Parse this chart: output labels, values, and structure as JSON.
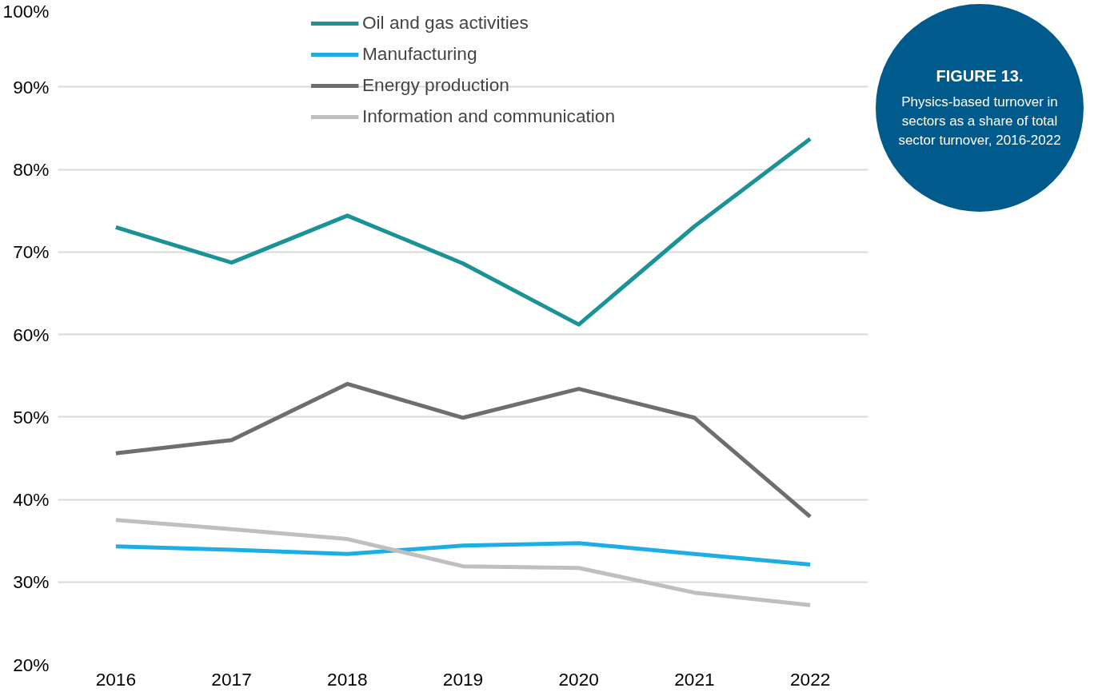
{
  "chart_data": {
    "type": "line",
    "title": "FIGURE 13.",
    "subtitle": "Physics-based turnover in sectors as a share of total sector turnover, 2016-2022",
    "categories": [
      "2016",
      "2017",
      "2018",
      "2019",
      "2020",
      "2021",
      "2022"
    ],
    "series": [
      {
        "name": "Oil and gas activities",
        "color": "#1a9396",
        "values": [
          73.0,
          68.7,
          74.4,
          68.6,
          61.2,
          73.1,
          83.7
        ]
      },
      {
        "name": "Manufacturing",
        "color": "#1eaee6",
        "values": [
          34.3,
          33.9,
          33.4,
          34.4,
          34.7,
          33.4,
          32.1
        ]
      },
      {
        "name": "Energy production",
        "color": "#6d6e71",
        "values": [
          45.6,
          47.2,
          54.0,
          49.9,
          53.4,
          49.9,
          37.9
        ]
      },
      {
        "name": "Information and communication",
        "color": "#bfbfbf",
        "values": [
          37.5,
          36.4,
          35.2,
          31.9,
          31.7,
          28.7,
          27.2
        ]
      }
    ],
    "ylim": [
      20,
      100
    ],
    "yticks": [
      {
        "value": 20,
        "label": "20%"
      },
      {
        "value": 30,
        "label": "30%"
      },
      {
        "value": 40,
        "label": "40%"
      },
      {
        "value": 50,
        "label": "50%"
      },
      {
        "value": 60,
        "label": "60%"
      },
      {
        "value": 70,
        "label": "70%"
      },
      {
        "value": 80,
        "label": "80%"
      },
      {
        "value": 90,
        "label": "90%"
      },
      {
        "value": 100,
        "label": "100%"
      }
    ],
    "grid": "y",
    "legend": "top",
    "marker": "none",
    "line_style": "solid"
  }
}
